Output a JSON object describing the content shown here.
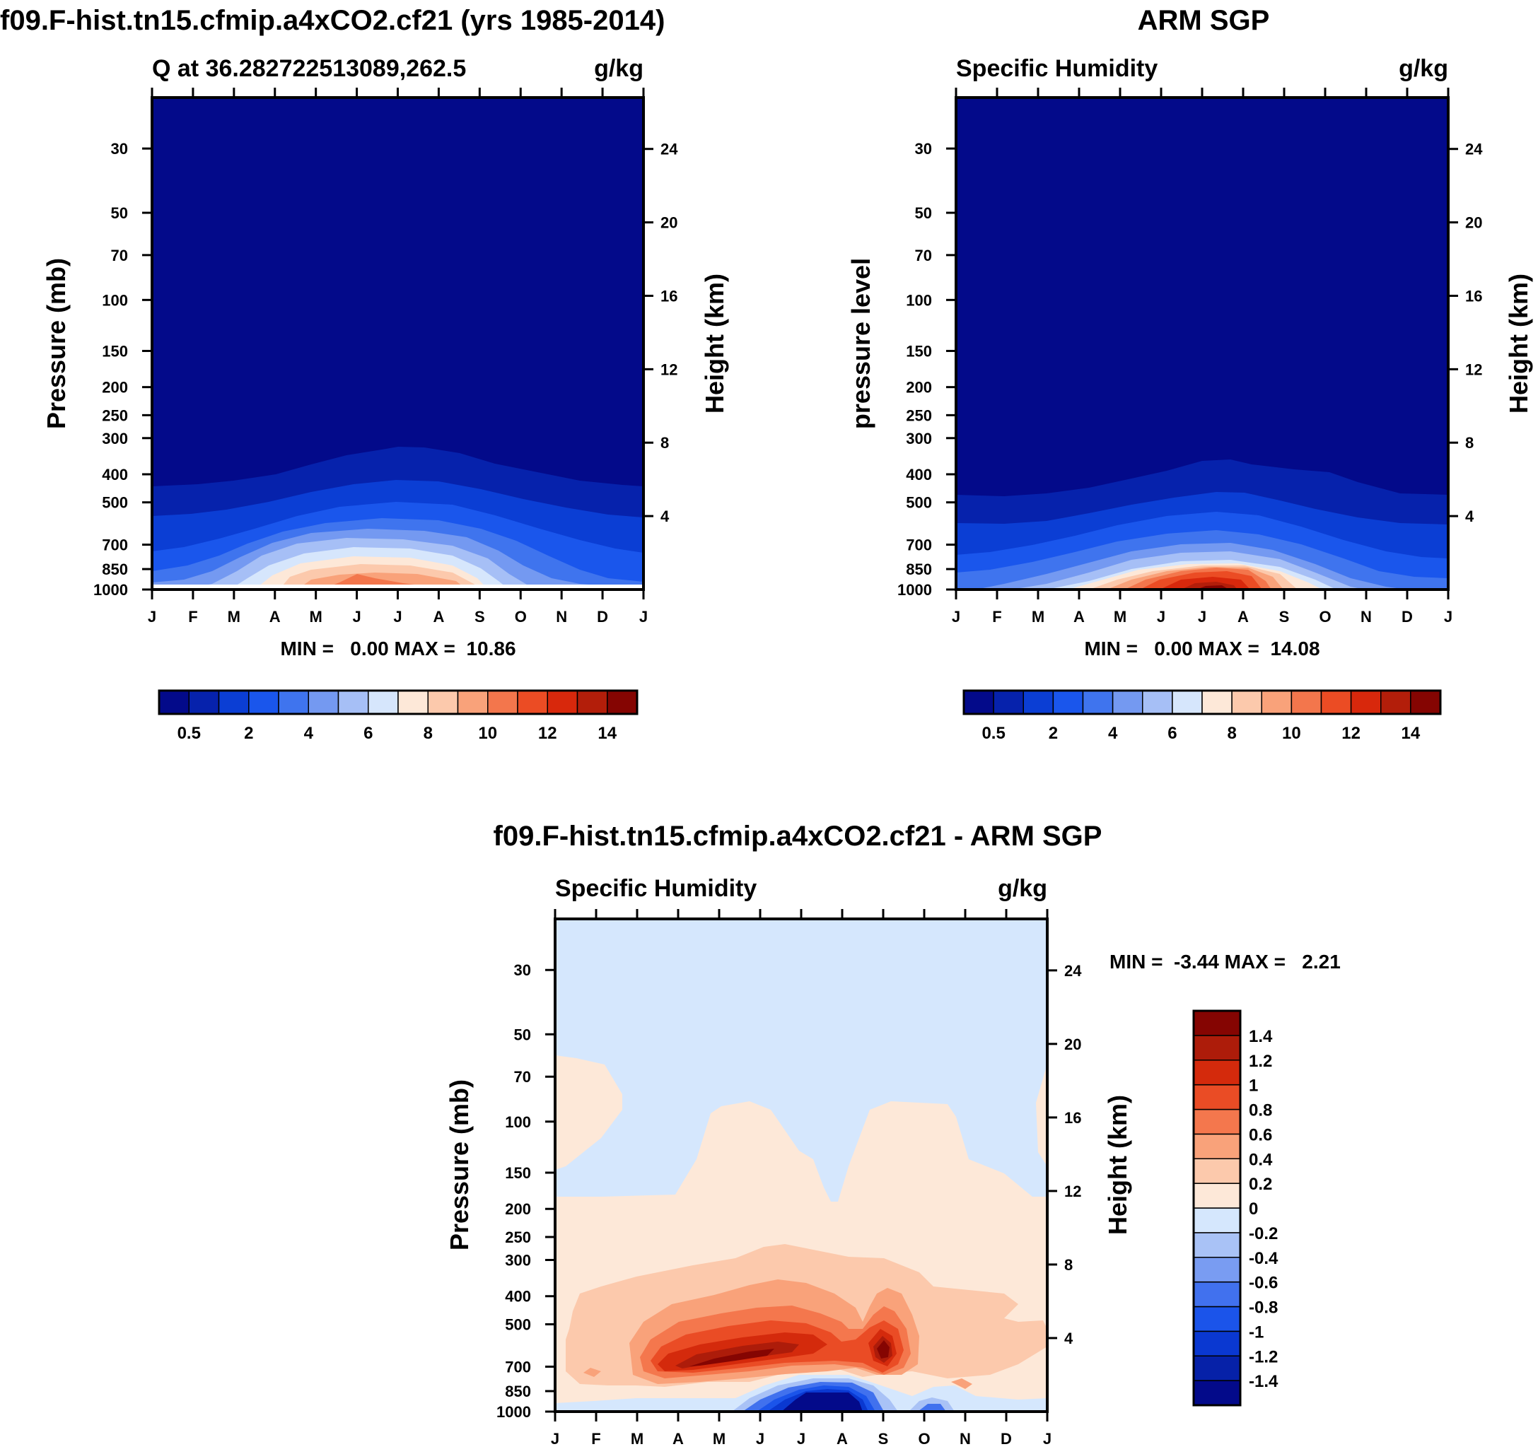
{
  "palettes": {
    "sequential": [
      "#030a8a",
      "#0622ac",
      "#0b3ed4",
      "#1a56ec",
      "#3f74ee",
      "#7499f1",
      "#a6bff6",
      "#d6e6fc",
      "#fde8d8",
      "#fcc9ac",
      "#f9a27a",
      "#f3764c",
      "#eb4c24",
      "#d8280c",
      "#b31e0a",
      "#850502"
    ],
    "diverging": [
      "#030a8a",
      "#0621a8",
      "#0a38d1",
      "#1b54ea",
      "#4171ee",
      "#799cf2",
      "#a9c2f6",
      "#d5e7fd",
      "#fde8d8",
      "#fcc9ac",
      "#f9a27a",
      "#f4774d",
      "#ea4c25",
      "#d42a0c",
      "#ad1c0a",
      "#850502"
    ]
  },
  "chart_data": [
    {
      "id": "top-left",
      "type": "contour",
      "title": "f09.F-hist.tn15.cfmip.a4xCO2.cf21 (yrs 1985-2014)",
      "subtitle_left": "Q at 36.282722513089,262.5",
      "subtitle_right": "g/kg",
      "ylabel": "Pressure (mb)",
      "ylabel_right": "Height (km)",
      "x_ticks": [
        "J",
        "F",
        "M",
        "A",
        "M",
        "J",
        "J",
        "A",
        "S",
        "O",
        "N",
        "D",
        "J"
      ],
      "y_ticks": [
        30,
        50,
        70,
        100,
        150,
        200,
        250,
        300,
        400,
        500,
        700,
        850,
        1000
      ],
      "y2_ticks": [
        24,
        20,
        16,
        12,
        8,
        4
      ],
      "stats": "MIN =   0.00 MAX =  10.86",
      "min": 0.0,
      "max": 10.86,
      "colorbar_labels": [
        "0.5",
        "2",
        "4",
        "6",
        "8",
        "10",
        "12",
        "14"
      ]
    },
    {
      "id": "top-right",
      "type": "contour",
      "title": "ARM SGP",
      "subtitle_left": "Specific Humidity",
      "subtitle_right": "g/kg",
      "ylabel": "pressure level",
      "ylabel_right": "Height (km)",
      "x_ticks": [
        "J",
        "F",
        "M",
        "A",
        "M",
        "J",
        "J",
        "A",
        "S",
        "O",
        "N",
        "D",
        "J"
      ],
      "y_ticks": [
        30,
        50,
        70,
        100,
        150,
        200,
        250,
        300,
        400,
        500,
        700,
        850,
        1000
      ],
      "y2_ticks": [
        24,
        20,
        16,
        12,
        8,
        4
      ],
      "stats": "MIN =   0.00 MAX =  14.08",
      "min": 0.0,
      "max": 14.08,
      "colorbar_labels": [
        "0.5",
        "2",
        "4",
        "6",
        "8",
        "10",
        "12",
        "14"
      ]
    },
    {
      "id": "bottom",
      "type": "contour",
      "title": "f09.F-hist.tn15.cfmip.a4xCO2.cf21 - ARM SGP",
      "subtitle_left": "Specific Humidity",
      "subtitle_right": "g/kg",
      "ylabel": "Pressure (mb)",
      "ylabel_right": "Height (km)",
      "x_ticks": [
        "J",
        "F",
        "M",
        "A",
        "M",
        "J",
        "J",
        "A",
        "S",
        "O",
        "N",
        "D",
        "J"
      ],
      "y_ticks": [
        30,
        50,
        70,
        100,
        150,
        200,
        250,
        300,
        400,
        500,
        700,
        850,
        1000
      ],
      "y2_ticks": [
        24,
        20,
        16,
        12,
        8,
        4
      ],
      "stats": "MIN =  -3.44 MAX =   2.21",
      "min": -3.44,
      "max": 2.21,
      "colorbar_labels": [
        "1.4",
        "1.2",
        "1",
        "0.8",
        "0.6",
        "0.4",
        "0.2",
        "0",
        "-0.2",
        "-0.4",
        "-0.6",
        "-0.8",
        "-1",
        "-1.2",
        "-1.4"
      ]
    }
  ]
}
